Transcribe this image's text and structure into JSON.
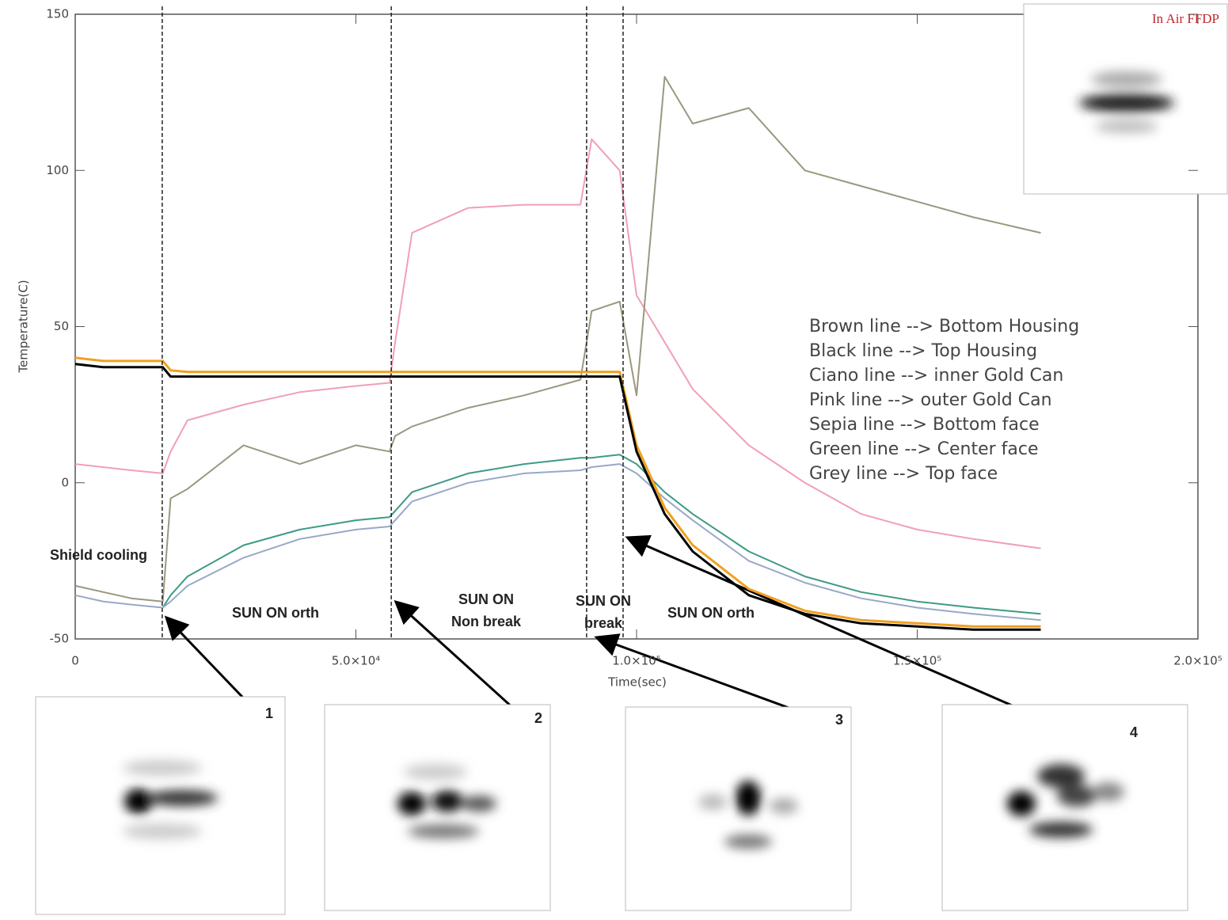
{
  "chart_data": {
    "type": "line",
    "xlabel": "Time(sec)",
    "ylabel": "Temperature(C)",
    "xlim": [
      0,
      200000
    ],
    "ylim": [
      -50,
      150
    ],
    "xticks": [
      0,
      {
        "value": 50000,
        "label": "5.0×10⁴"
      },
      {
        "value": 100000,
        "label": "1.0×10⁵"
      },
      {
        "value": 150000,
        "label": "1.5×10⁵"
      },
      {
        "value": 200000,
        "label": "2.0×10⁵"
      }
    ],
    "yticks": [
      -50,
      0,
      50,
      100,
      150
    ],
    "x": [
      0,
      5000,
      10000,
      15600,
      17000,
      20000,
      30000,
      40000,
      50000,
      56000,
      57000,
      60000,
      70000,
      80000,
      90000,
      92000,
      97000,
      100000,
      105000,
      110000,
      120000,
      130000,
      140000,
      150000,
      160000,
      172000
    ],
    "series": [
      {
        "color": "#f0a0b4",
        "values": [
          6,
          5,
          4,
          3,
          10,
          20,
          25,
          29,
          31,
          32,
          45,
          80,
          88,
          89,
          89,
          110,
          100,
          60,
          45,
          30,
          12,
          0,
          -10,
          -15,
          -18,
          -21
        ]
      },
      {
        "color": "#9a9880",
        "values": [
          -33,
          -35,
          -37,
          -38,
          -5,
          -2,
          12,
          6,
          12,
          10,
          15,
          18,
          24,
          28,
          33,
          55,
          58,
          28,
          130,
          115,
          120,
          100,
          95,
          90,
          85,
          80
        ]
      },
      {
        "color": "#3e9a86",
        "values": [
          null,
          null,
          null,
          -40,
          -36,
          -30,
          -20,
          -15,
          -12,
          -11,
          -9,
          -3,
          3,
          6,
          8,
          8,
          9,
          6,
          -3,
          -10,
          -22,
          -30,
          -35,
          -38,
          -40,
          -42
        ]
      },
      {
        "color": "#98a8c8",
        "values": [
          -36,
          -38,
          -39,
          -40,
          -38,
          -33,
          -24,
          -18,
          -15,
          -14,
          -12,
          -6,
          0,
          3,
          4,
          5,
          6,
          3,
          -5,
          -12,
          -25,
          -32,
          -37,
          -40,
          -42,
          -44
        ]
      },
      {
        "color": "#f0a020",
        "values": [
          40,
          39,
          39,
          39,
          36,
          35.5,
          35.5,
          35.5,
          35.5,
          35.5,
          35.5,
          35.5,
          35.5,
          35.5,
          35.5,
          35.5,
          35.5,
          12,
          -8,
          -20,
          -34,
          -41,
          -44,
          -45,
          -46,
          -46
        ]
      },
      {
        "color": "#000000",
        "values": [
          38,
          37,
          37,
          37,
          34,
          34,
          34,
          34,
          34,
          34,
          34,
          34,
          34,
          34,
          34,
          34,
          34,
          10,
          -10,
          -22,
          -36,
          -42,
          -45,
          -46,
          -47,
          -47
        ]
      }
    ],
    "vlines": [
      15500,
      56300,
      91100,
      97600
    ],
    "legend_text": [
      "Brown line --> Bottom Housing",
      "Black line --> Top Housing",
      "Ciano line --> inner Gold Can",
      "Pink line --> outer Gold Can",
      "Sepia line --> Bottom face",
      "Green line --> Center face",
      "Grey line --> Top face"
    ],
    "annotations": [
      "Shield cooling",
      "SUN ON orth",
      "SUN ON",
      "Non break",
      "SUN ON",
      "break",
      "SUN ON orth"
    ],
    "inset_title": "In Air FFDP",
    "inset_numbers": [
      "1",
      "2",
      "3",
      "4"
    ]
  }
}
